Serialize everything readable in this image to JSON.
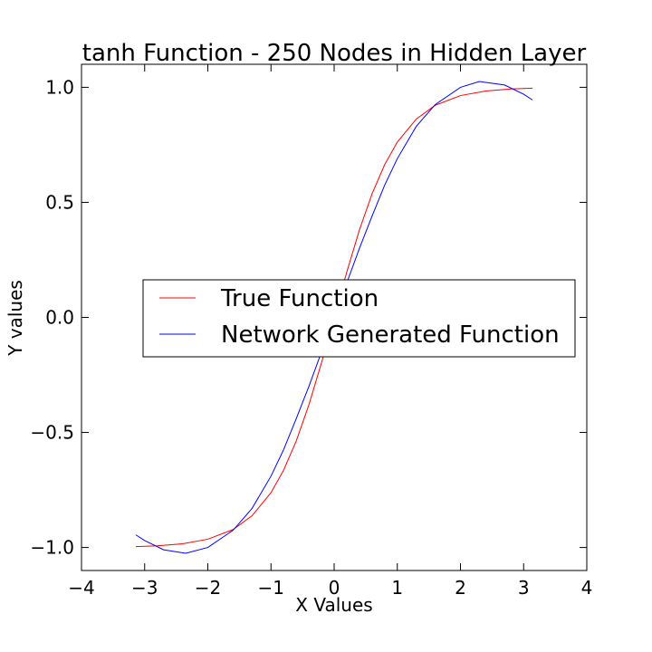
{
  "chart_data": {
    "type": "line",
    "title": "tanh Function - 250 Nodes in Hidden Layer",
    "xlabel": "X Values",
    "ylabel": "Y values",
    "xlim": [
      -4,
      4
    ],
    "ylim": [
      -1.1,
      1.1
    ],
    "xticks": [
      -4,
      -3,
      -2,
      -1,
      0,
      1,
      2,
      3,
      4
    ],
    "xtick_labels": [
      "−4",
      "−3",
      "−2",
      "−1",
      "0",
      "1",
      "2",
      "3",
      "4"
    ],
    "yticks": [
      -1.0,
      -0.5,
      0.0,
      0.5,
      1.0
    ],
    "ytick_labels": [
      "−1.0",
      "−0.5",
      "0.0",
      "0.5",
      "1.0"
    ],
    "grid": false,
    "legend_position": "center-right",
    "series": [
      {
        "name": "True Function",
        "color": "#ff0000",
        "x": [
          -3.14,
          -2.8,
          -2.4,
          -2.0,
          -1.6,
          -1.3,
          -1.0,
          -0.8,
          -0.6,
          -0.4,
          -0.2,
          0.0,
          0.2,
          0.4,
          0.6,
          0.8,
          1.0,
          1.3,
          1.6,
          2.0,
          2.4,
          2.8,
          3.14
        ],
        "y": [
          -0.996,
          -0.993,
          -0.984,
          -0.964,
          -0.922,
          -0.862,
          -0.762,
          -0.664,
          -0.537,
          -0.38,
          -0.197,
          0.0,
          0.197,
          0.38,
          0.537,
          0.664,
          0.762,
          0.862,
          0.922,
          0.964,
          0.984,
          0.993,
          0.996
        ]
      },
      {
        "name": "Network Generated Function",
        "color": "#0000ff",
        "x": [
          -3.14,
          -3.0,
          -2.7,
          -2.35,
          -2.0,
          -1.6,
          -1.3,
          -1.0,
          -0.8,
          -0.6,
          -0.4,
          -0.2,
          0.0,
          0.2,
          0.4,
          0.6,
          0.8,
          1.0,
          1.3,
          1.6,
          2.0,
          2.3,
          2.7,
          3.0,
          3.14
        ],
        "y": [
          -0.945,
          -0.97,
          -1.01,
          -1.025,
          -1.0,
          -0.925,
          -0.83,
          -0.69,
          -0.575,
          -0.44,
          -0.3,
          -0.15,
          0.0,
          0.15,
          0.3,
          0.44,
          0.575,
          0.69,
          0.83,
          0.925,
          1.0,
          1.025,
          1.01,
          0.97,
          0.945
        ]
      }
    ]
  }
}
